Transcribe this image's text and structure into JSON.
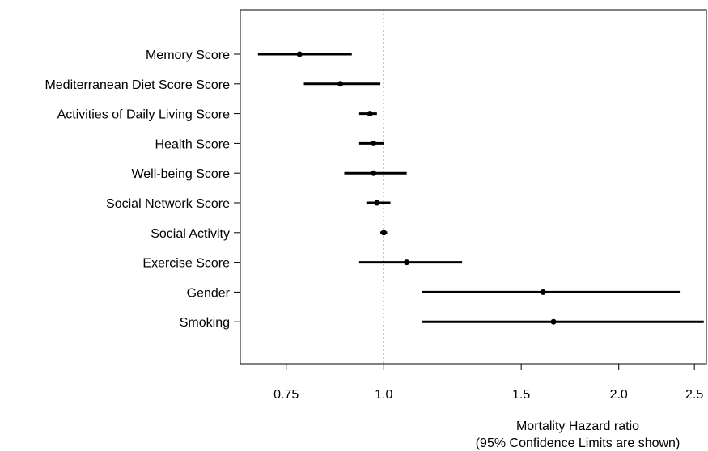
{
  "chart_data": {
    "type": "forest",
    "title": "",
    "xlabel": "Mortality Hazard ratio",
    "xlabel_sub": "(95% Confidence Limits are shown)",
    "x_scale": "log",
    "xlim": [
      0.655,
      2.59
    ],
    "x_ticks": [
      {
        "value": 0.75,
        "label": "0.75"
      },
      {
        "value": 1.0,
        "label": "1.0"
      },
      {
        "value": 1.5,
        "label": "1.5"
      },
      {
        "value": 2.0,
        "label": "2.0"
      },
      {
        "value": 2.5,
        "label": "2.5"
      }
    ],
    "reference_line": 1.0,
    "items": [
      {
        "label": "Memory Score",
        "hr": 0.78,
        "lower": 0.69,
        "upper": 0.91
      },
      {
        "label": "Mediterranean Diet Score Score",
        "hr": 0.88,
        "lower": 0.79,
        "upper": 0.99
      },
      {
        "label": "Activities of Daily Living Score",
        "hr": 0.96,
        "lower": 0.93,
        "upper": 0.98
      },
      {
        "label": "Health Score",
        "hr": 0.97,
        "lower": 0.93,
        "upper": 1.0
      },
      {
        "label": "Well-being Score",
        "hr": 0.97,
        "lower": 0.89,
        "upper": 1.07
      },
      {
        "label": "Social Network Score",
        "hr": 0.98,
        "lower": 0.95,
        "upper": 1.02
      },
      {
        "label": "Social Activity",
        "hr": 1.0,
        "lower": 0.99,
        "upper": 1.01
      },
      {
        "label": "Exercise Score",
        "hr": 1.07,
        "lower": 0.93,
        "upper": 1.26
      },
      {
        "label": "Gender",
        "hr": 1.6,
        "lower": 1.12,
        "upper": 2.4
      },
      {
        "label": "Smoking",
        "hr": 1.65,
        "lower": 1.12,
        "upper": 2.57
      }
    ]
  }
}
